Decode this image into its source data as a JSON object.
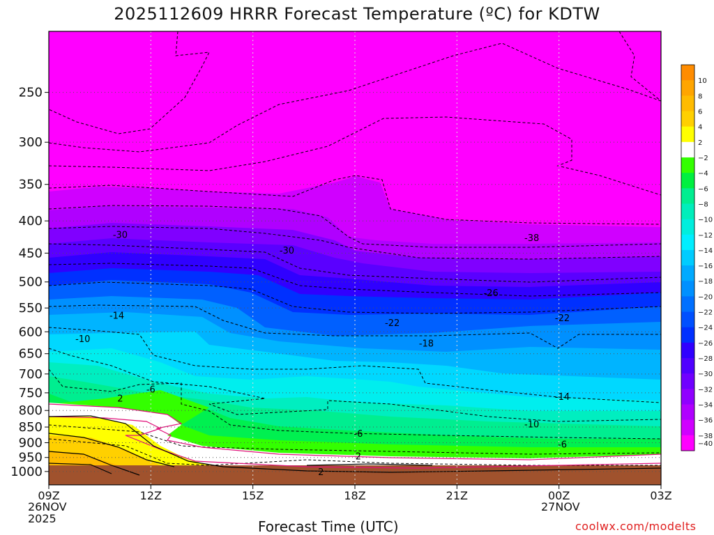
{
  "chart_data": {
    "type": "heatmap",
    "title": "2025112609 HRRR Forecast Temperature (ºC) for KDTW",
    "xlabel": "Forecast Time (UTC)",
    "ylabel": "",
    "x_ticks": [
      "09Z",
      "12Z",
      "15Z",
      "18Z",
      "21Z",
      "00Z",
      "03Z"
    ],
    "x_hours": [
      0,
      3,
      6,
      9,
      12,
      15,
      18
    ],
    "x_date_labels": {
      "start_day": "26NOV",
      "start_year": "2025",
      "next_day": "27NOV"
    },
    "y_ticks": [
      250,
      300,
      350,
      400,
      450,
      500,
      550,
      600,
      650,
      700,
      750,
      800,
      850,
      900,
      950,
      1000
    ],
    "y_range": [
      200,
      1050
    ],
    "y_scale": "log",
    "grid": true,
    "colorbar": {
      "levels": [
        10,
        8,
        6,
        4,
        2,
        -2,
        -4,
        -6,
        -8,
        -10,
        -12,
        -14,
        -16,
        -18,
        -20,
        -22,
        -24,
        -26,
        -28,
        -30,
        -32,
        -34,
        -36,
        -38,
        -40
      ],
      "colors": [
        "#ff8c00",
        "#ffa500",
        "#ffbb00",
        "#ffd000",
        "#ffff00",
        "#ffffff",
        "#33ff00",
        "#00f040",
        "#00ee90",
        "#00eebb",
        "#00eedd",
        "#00eeff",
        "#00ccff",
        "#00aaff",
        "#0090ff",
        "#0070ff",
        "#0050ff",
        "#0030ff",
        "#3000ff",
        "#5000ff",
        "#7000ff",
        "#9000ff",
        "#b000ff",
        "#d000ff",
        "#ff00ff"
      ]
    },
    "contour_labels": [
      {
        "text": "-30",
        "hour": 2.1,
        "p": 420
      },
      {
        "text": "-30",
        "hour": 7.0,
        "p": 445
      },
      {
        "text": "-38",
        "hour": 14.2,
        "p": 425
      },
      {
        "text": "-26",
        "hour": 13.0,
        "p": 520
      },
      {
        "text": "-22",
        "hour": 10.1,
        "p": 580
      },
      {
        "text": "-22",
        "hour": 15.1,
        "p": 570
      },
      {
        "text": "-18",
        "hour": 11.1,
        "p": 625
      },
      {
        "text": "-14",
        "hour": 2.0,
        "p": 565
      },
      {
        "text": "-14",
        "hour": 15.1,
        "p": 760
      },
      {
        "text": "-10",
        "hour": 1.0,
        "p": 615
      },
      {
        "text": "-10",
        "hour": 14.2,
        "p": 840
      },
      {
        "text": "-6",
        "hour": 3.0,
        "p": 740
      },
      {
        "text": "-6",
        "hour": 9.1,
        "p": 870
      },
      {
        "text": "-6",
        "hour": 15.1,
        "p": 905
      },
      {
        "text": "2",
        "hour": 2.1,
        "p": 765
      },
      {
        "text": "2",
        "hour": 9.1,
        "p": 945
      },
      {
        "text": "2",
        "hour": 8.0,
        "p": 1000
      }
    ]
  },
  "credit": "coolwx.com/modelts"
}
